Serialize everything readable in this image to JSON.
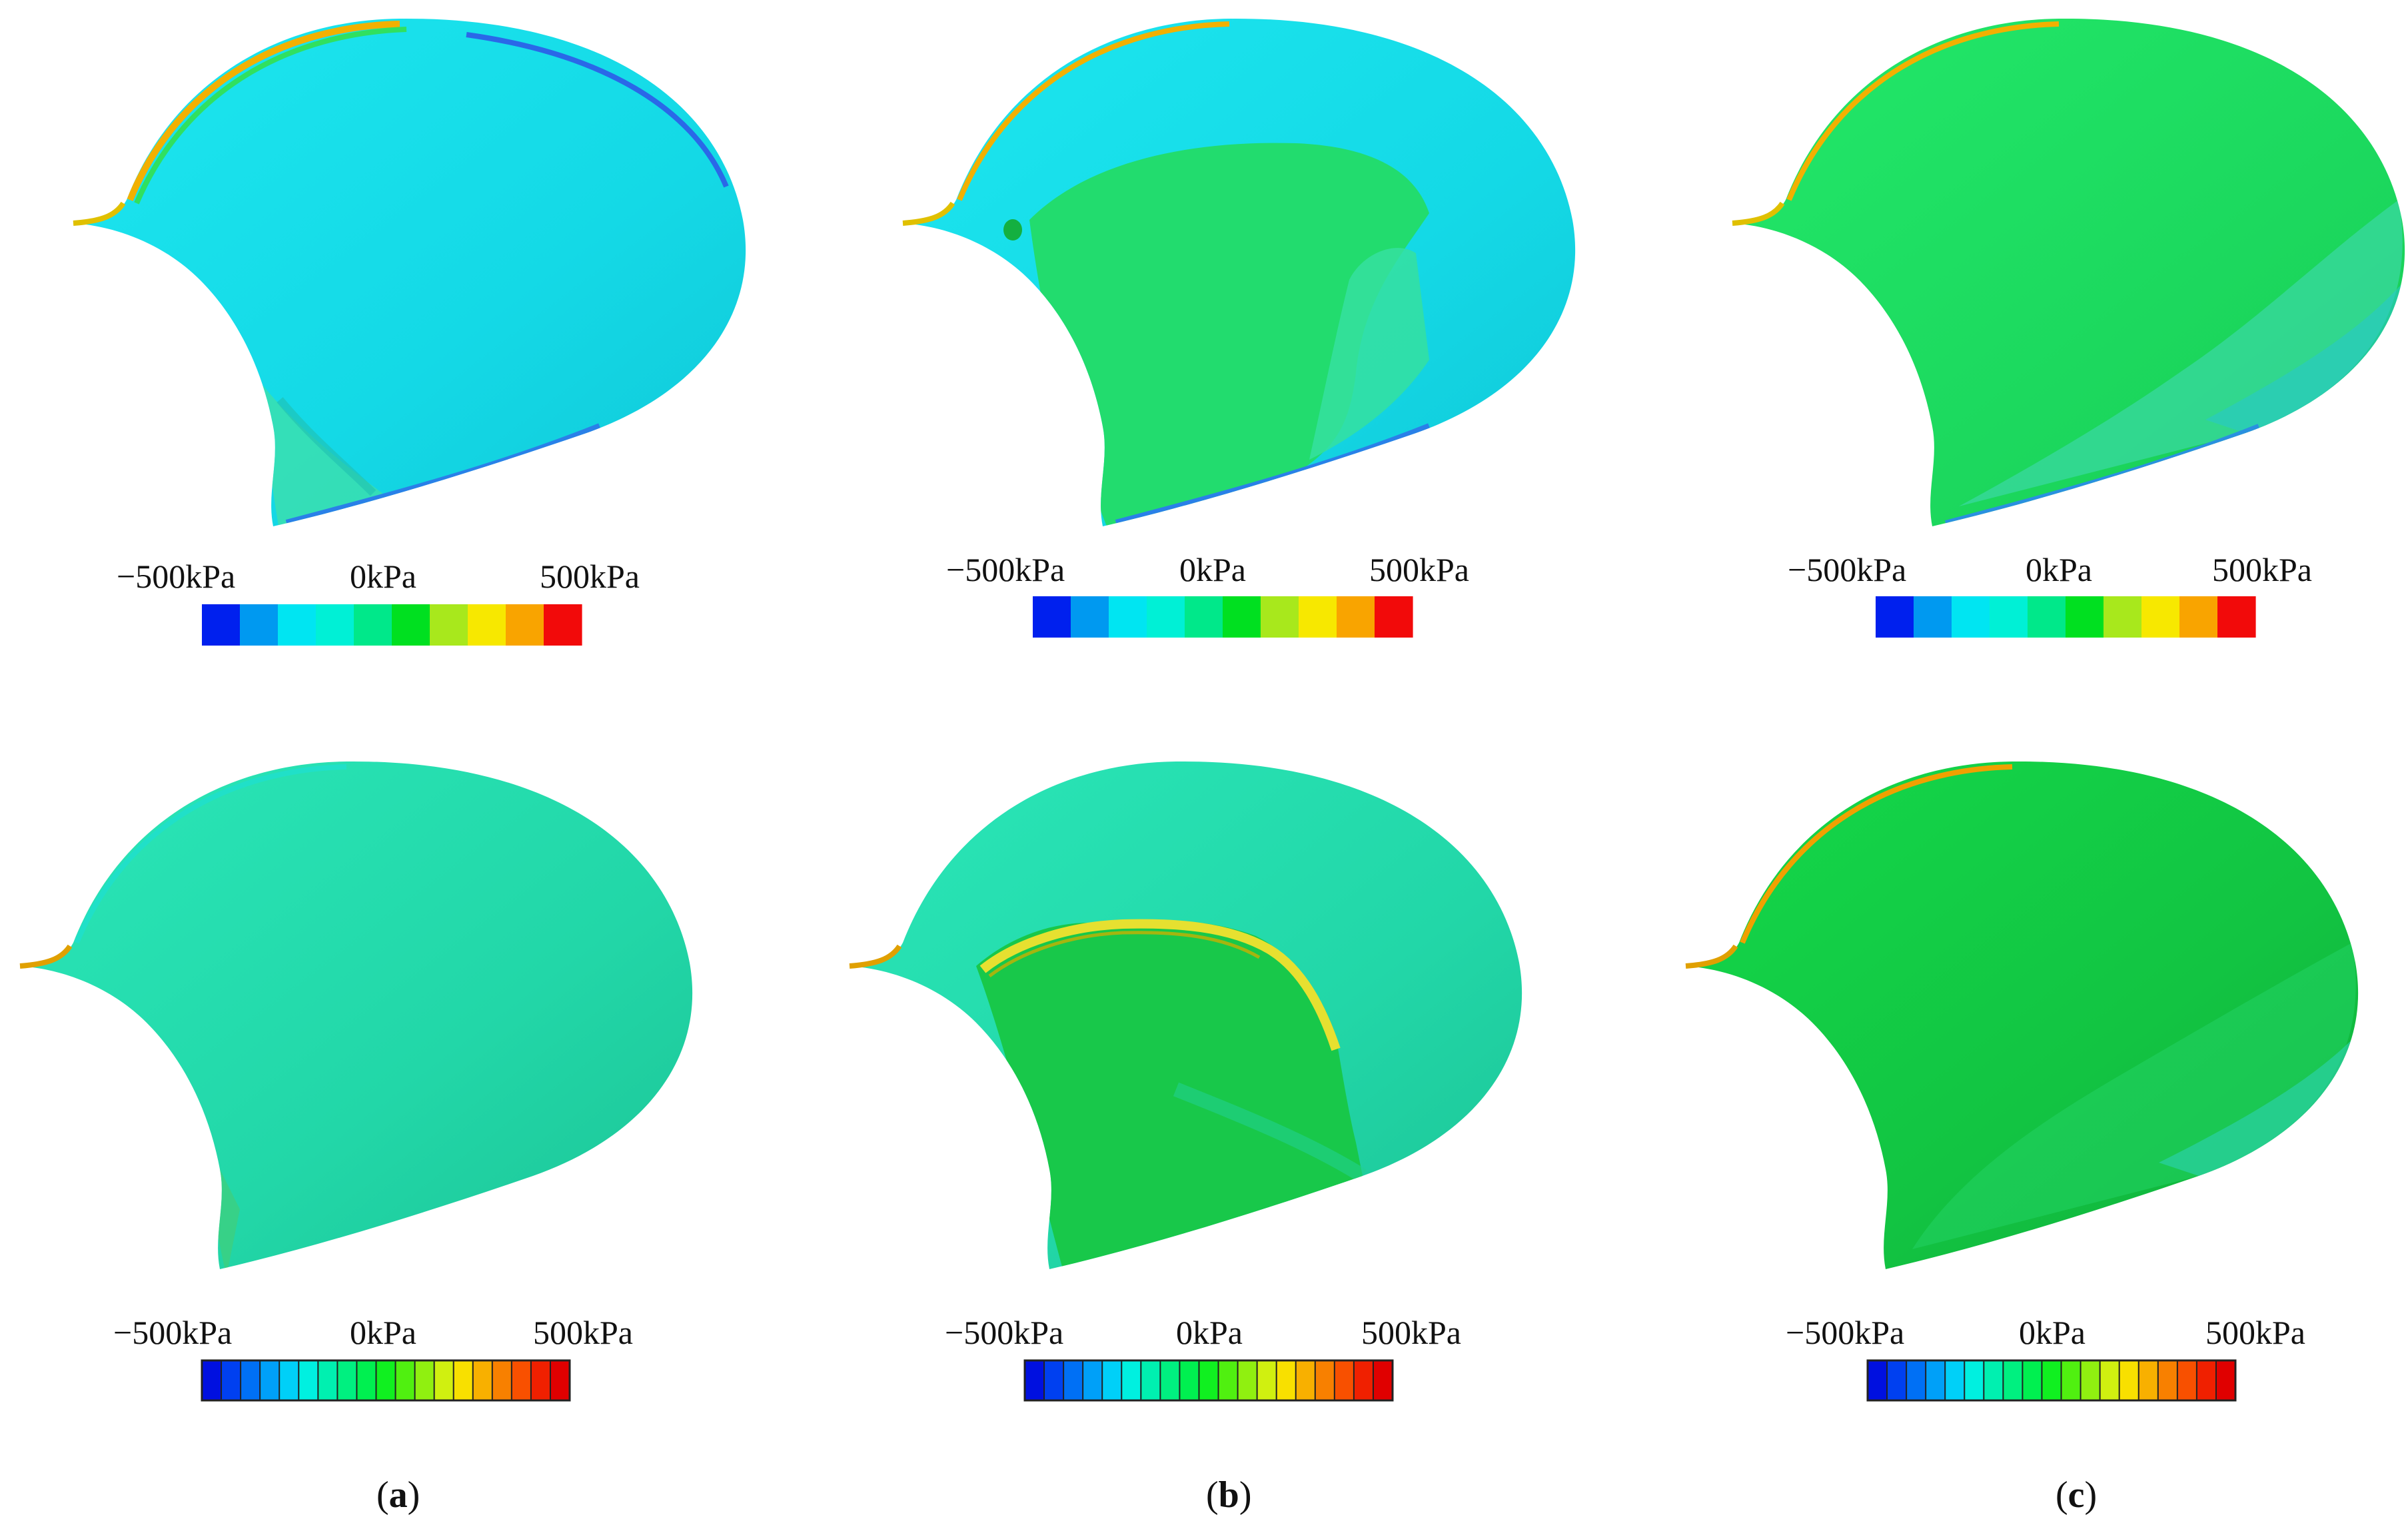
{
  "panels": [
    {
      "row": 1,
      "col": 1,
      "variant": "cyan-blade"
    },
    {
      "row": 1,
      "col": 2,
      "variant": "cyan-green-blade"
    },
    {
      "row": 1,
      "col": 3,
      "variant": "green-blade"
    },
    {
      "row": 2,
      "col": 1,
      "variant": "teal-blade"
    },
    {
      "row": 2,
      "col": 2,
      "variant": "cavity-blade"
    },
    {
      "row": 2,
      "col": 3,
      "variant": "green-blade-2"
    }
  ],
  "colorbar": {
    "min_label": "−500kPa",
    "mid_label": "0kPa",
    "max_label": "500kPa",
    "top_row_colors": [
      "#0020ee",
      "#0099f0",
      "#00e5f2",
      "#00f0d6",
      "#00e88a",
      "#00e020",
      "#a8e81c",
      "#f7e800",
      "#f9a400",
      "#f20a0a"
    ],
    "bottom_row_colors": [
      "#0010e0",
      "#0040f0",
      "#0070f5",
      "#00a0f8",
      "#00d0f8",
      "#00f0e0",
      "#00f0b0",
      "#00f080",
      "#00f050",
      "#10f020",
      "#50f010",
      "#90f010",
      "#d0f010",
      "#f8e000",
      "#f8b000",
      "#f88000",
      "#f85000",
      "#f02000",
      "#e00000"
    ]
  },
  "captions": [
    {
      "id": "a",
      "open": "(",
      "letter": "a",
      "close": ")"
    },
    {
      "id": "b",
      "open": "(",
      "letter": "b",
      "close": ")"
    },
    {
      "id": "c",
      "open": "(",
      "letter": "c",
      "close": ")"
    }
  ]
}
